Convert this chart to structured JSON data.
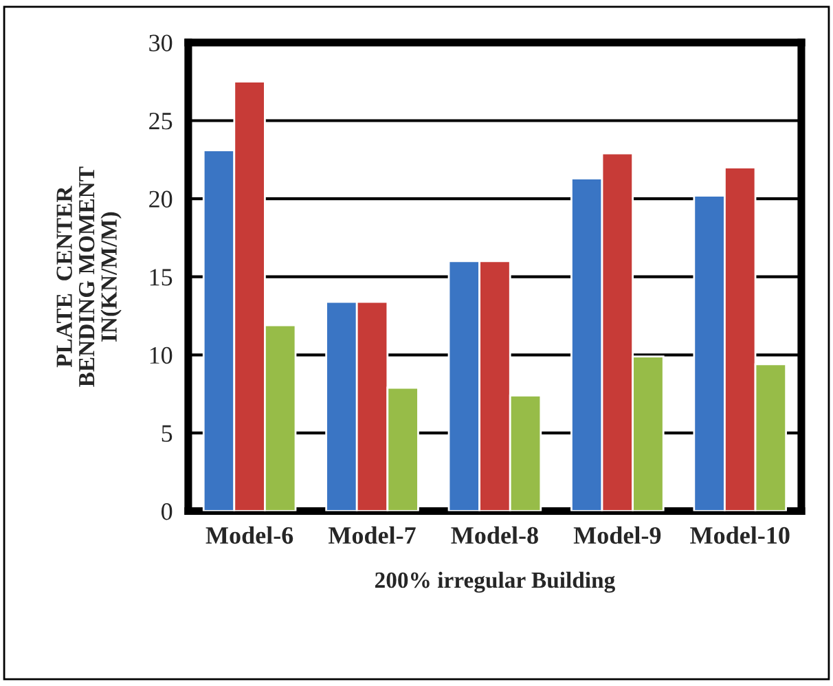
{
  "chart_data": {
    "type": "bar",
    "xlabel": "200% irregular Building",
    "ylabel": "PLATE  CENTER\nBENDING MOMENT\nIN(KN/M/M)",
    "categories": [
      "Model-6",
      "Model-7",
      "Model-8",
      "Model-9",
      "Model-10"
    ],
    "series": [
      {
        "color": "#3a75c4",
        "values": [
          23.1,
          13.4,
          16.0,
          21.3,
          20.2
        ]
      },
      {
        "color": "#c73b37",
        "values": [
          27.5,
          13.4,
          16.0,
          22.9,
          22.0
        ]
      },
      {
        "color": "#97bc48",
        "values": [
          11.9,
          7.9,
          7.4,
          9.9,
          9.4
        ]
      }
    ],
    "ylim": [
      0,
      30
    ],
    "yticks": [
      0,
      5,
      10,
      15,
      20,
      25,
      30
    ],
    "grid": "y",
    "legend": false
  }
}
